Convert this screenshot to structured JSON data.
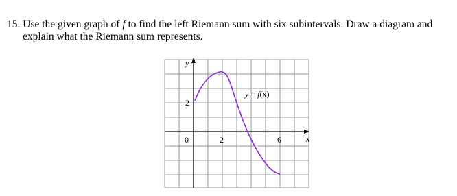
{
  "problem": {
    "number": "15.",
    "line1_a": "Use the given graph of ",
    "line1_f": "f",
    "line1_b": " to find the left Riemann sum with six subintervals.  Draw a diagram and",
    "line2": "explain what the Riemann sum represents."
  },
  "graph": {
    "y_axis_label": "y",
    "x_axis_label": "x",
    "origin_label": "0",
    "x_tick_2": "2",
    "x_tick_6": "6",
    "y_tick_2": "2",
    "curve_label_a": "y",
    "curve_label_b": " = ",
    "curve_label_c": "f",
    "curve_label_d": "(x)"
  }
}
